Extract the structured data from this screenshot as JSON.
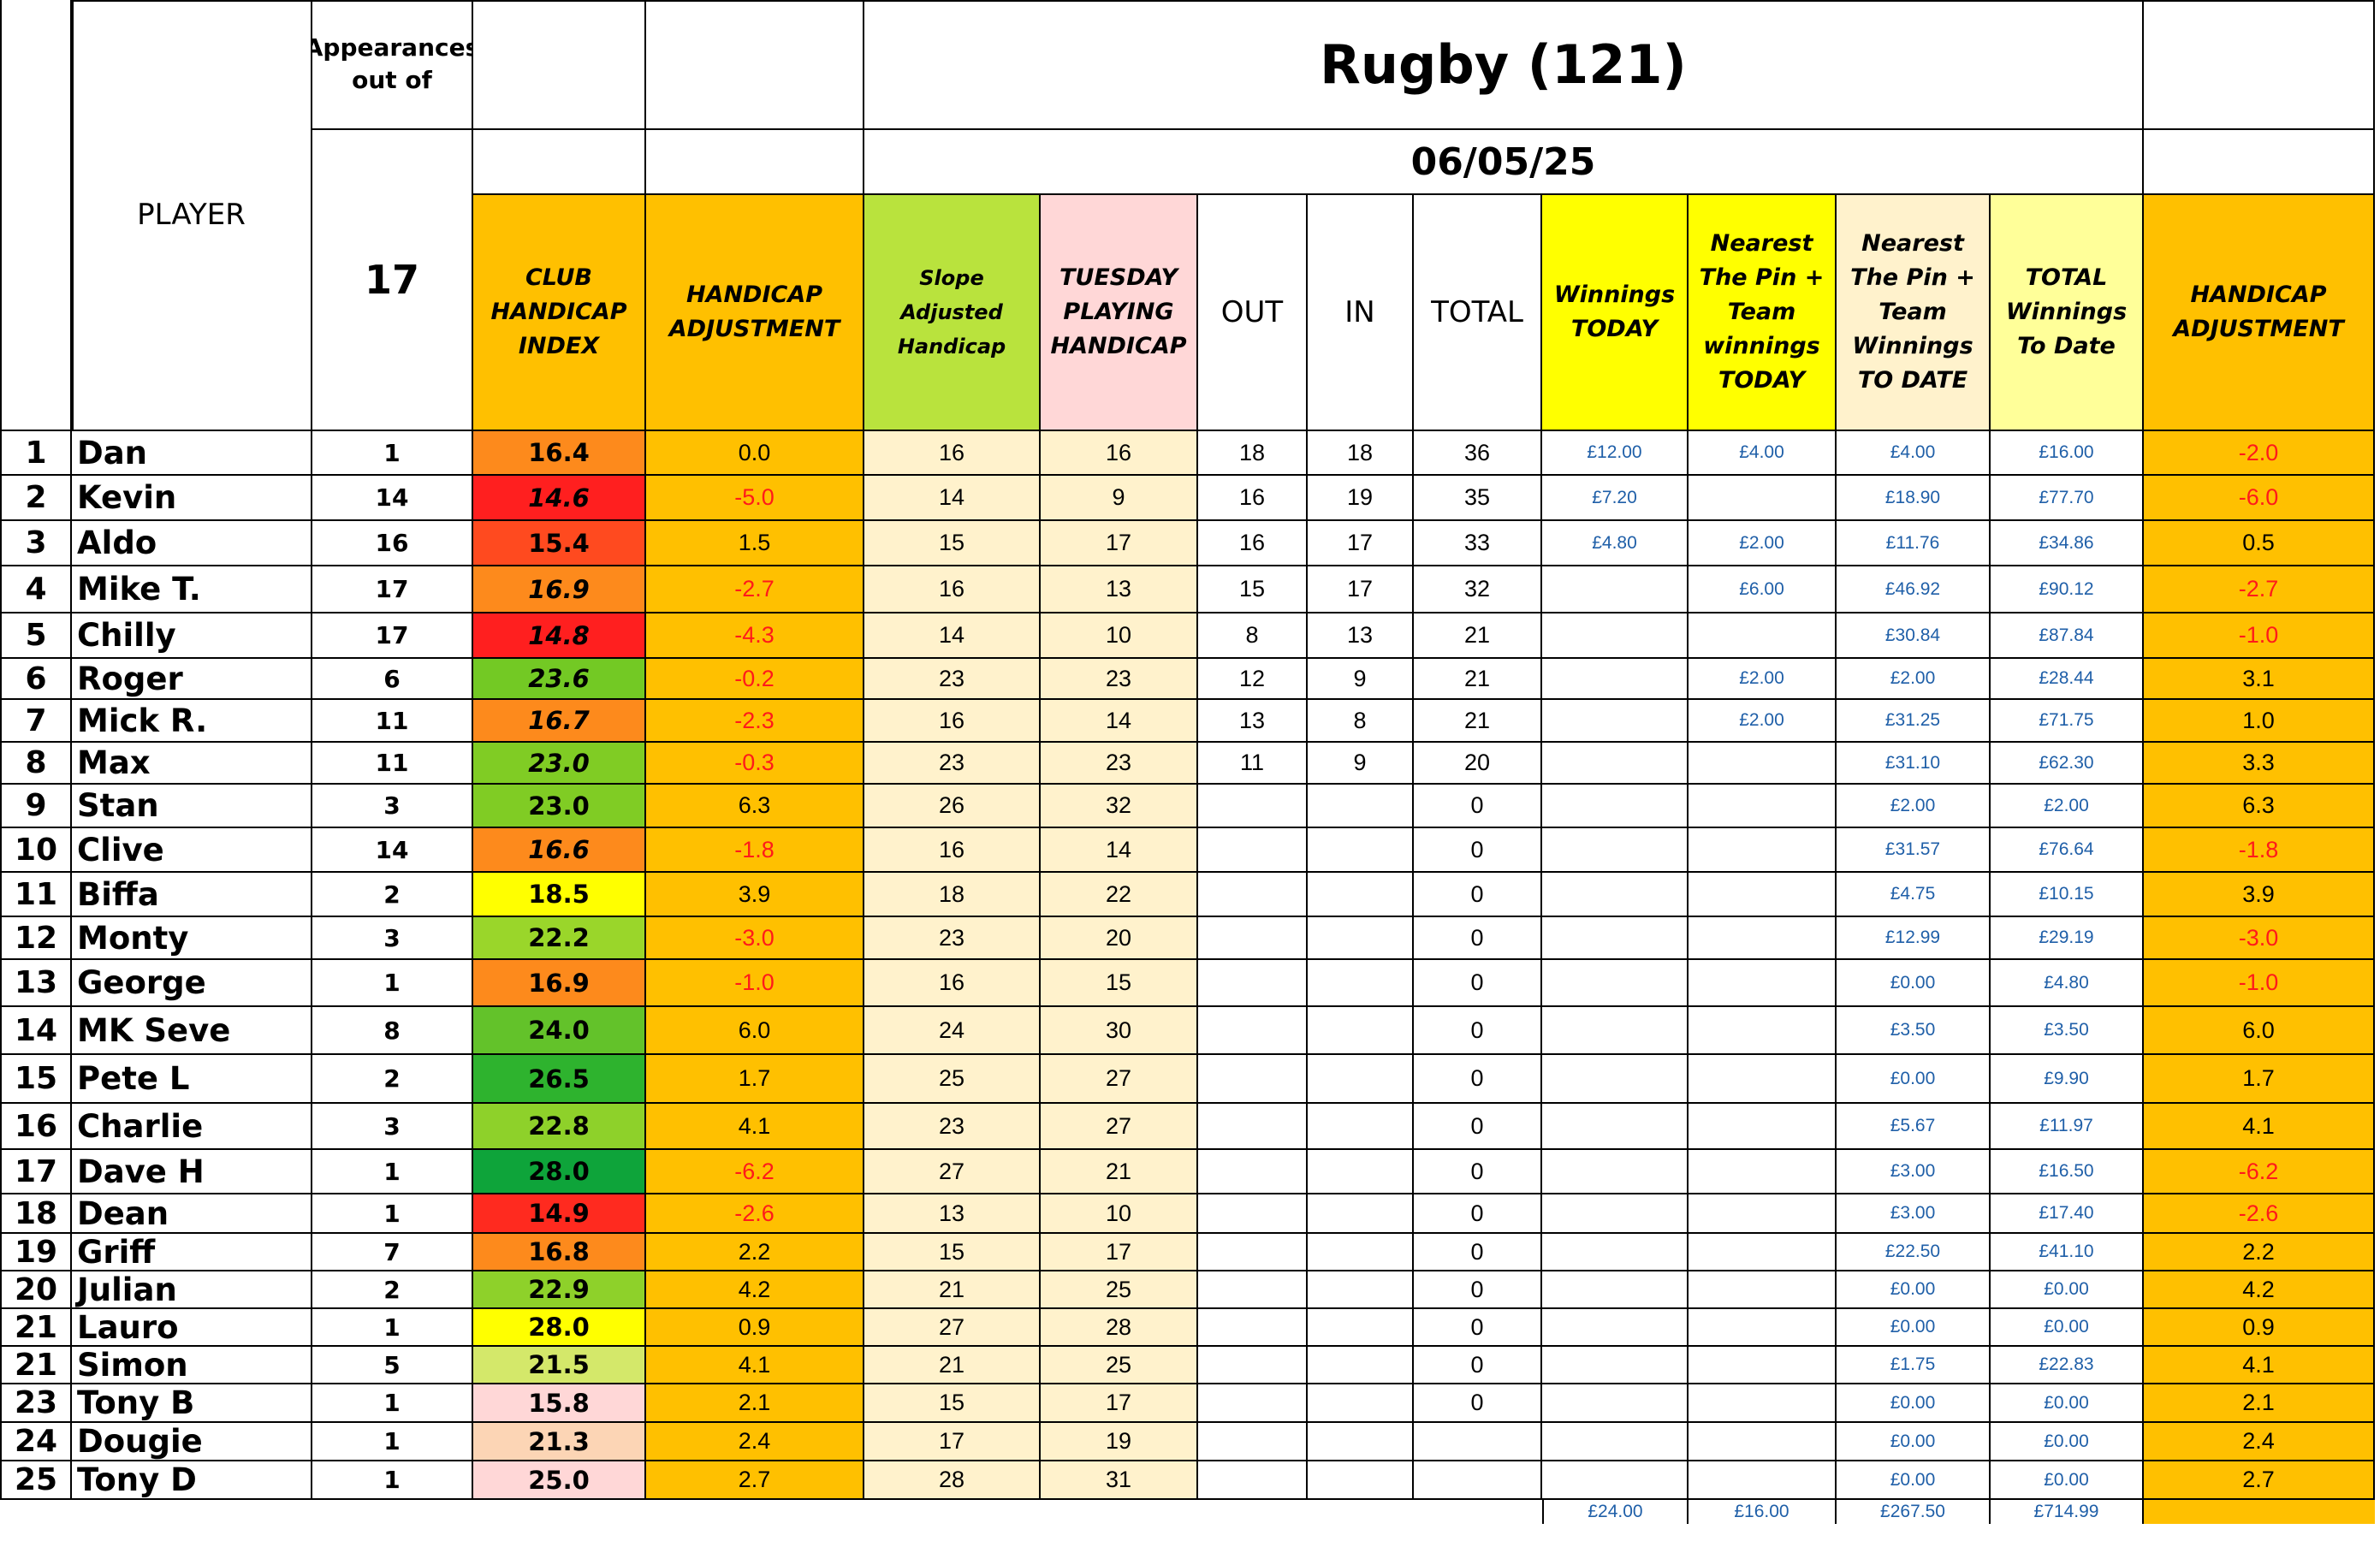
{
  "header": {
    "appearances_label": "Appearances out of",
    "appearances_total": "17",
    "title": "Rugby (121)",
    "date": "06/05/25",
    "columns": {
      "player": "PLAYER",
      "club_handicap_index": "CLUB HANDICAP INDEX",
      "handicap_adjustment": "HANDICAP ADJUSTMENT",
      "slope_adjusted": "Slope Adjusted Handicap",
      "tuesday_playing": "TUESDAY PLAYING HANDICAP",
      "out": "OUT",
      "in": "IN",
      "total": "TOTAL",
      "winnings_today": "Winnings TODAY",
      "ntp_today": "Nearest The Pin + Team winnings TODAY",
      "ntp_to_date": "Nearest The Pin + Team Winnings TO DATE",
      "total_to_date": "TOTAL Winnings To Date",
      "handicap_adjustment_2": "HANDICAP ADJUSTMENT"
    }
  },
  "colors": {
    "orange": "#ffc000",
    "lime": "#b9e33d",
    "pink": "#ffd7d7",
    "cream": "#fff2cc",
    "yellow": "#ffff00",
    "light_yellow": "#ffff99",
    "money_blue": "#1f5fa8",
    "negative_red": "#ff1a1a"
  },
  "rows": [
    {
      "no": "1",
      "name": "Dan",
      "apps": "1",
      "idx": "16.4",
      "idx_color": "#fd8a1c",
      "adj": "0.0",
      "adj_neg": false,
      "idx_italic": false,
      "slope": "16",
      "tph": "16",
      "out": "18",
      "in": "18",
      "total": "36",
      "win_today": "£12.00",
      "ntp_today": "£4.00",
      "ntp_date": "£4.00",
      "total_date": "£16.00",
      "adj2": "-2.0",
      "adj2_neg": true
    },
    {
      "no": "2",
      "name": "Kevin",
      "apps": "14",
      "idx": "14.6",
      "idx_color": "#ff1f1f",
      "adj": "-5.0",
      "adj_neg": true,
      "idx_italic": true,
      "slope": "14",
      "tph": "9",
      "out": "16",
      "in": "19",
      "total": "35",
      "win_today": "£7.20",
      "ntp_today": "",
      "ntp_date": "£18.90",
      "total_date": "£77.70",
      "adj2": "-6.0",
      "adj2_neg": true
    },
    {
      "no": "3",
      "name": "Aldo",
      "apps": "16",
      "idx": "15.4",
      "idx_color": "#ff4a1f",
      "adj": "1.5",
      "adj_neg": false,
      "idx_italic": false,
      "slope": "15",
      "tph": "17",
      "out": "16",
      "in": "17",
      "total": "33",
      "win_today": "£4.80",
      "ntp_today": "£2.00",
      "ntp_date": "£11.76",
      "total_date": "£34.86",
      "adj2": "0.5",
      "adj2_neg": false
    },
    {
      "no": "4",
      "name": "Mike T.",
      "apps": "17",
      "idx": "16.9",
      "idx_color": "#fd8a1c",
      "adj": "-2.7",
      "adj_neg": true,
      "idx_italic": true,
      "slope": "16",
      "tph": "13",
      "out": "15",
      "in": "17",
      "total": "32",
      "win_today": "",
      "ntp_today": "£6.00",
      "ntp_date": "£46.92",
      "total_date": "£90.12",
      "adj2": "-2.7",
      "adj2_neg": true
    },
    {
      "no": "5",
      "name": "Chilly",
      "apps": "17",
      "idx": "14.8",
      "idx_color": "#ff1f1f",
      "adj": "-4.3",
      "adj_neg": true,
      "idx_italic": true,
      "slope": "14",
      "tph": "10",
      "out": "8",
      "in": "13",
      "total": "21",
      "win_today": "",
      "ntp_today": "",
      "ntp_date": "£30.84",
      "total_date": "£87.84",
      "adj2": "-1.0",
      "adj2_neg": true
    },
    {
      "no": "6",
      "name": "Roger",
      "apps": "6",
      "idx": "23.6",
      "idx_color": "#73c924",
      "adj": "-0.2",
      "adj_neg": true,
      "idx_italic": true,
      "slope": "23",
      "tph": "23",
      "out": "12",
      "in": "9",
      "total": "21",
      "win_today": "",
      "ntp_today": "£2.00",
      "ntp_date": "£2.00",
      "total_date": "£28.44",
      "adj2": "3.1",
      "adj2_neg": false
    },
    {
      "no": "7",
      "name": "Mick R.",
      "apps": "11",
      "idx": "16.7",
      "idx_color": "#fd8a1c",
      "adj": "-2.3",
      "adj_neg": true,
      "idx_italic": true,
      "slope": "16",
      "tph": "14",
      "out": "13",
      "in": "8",
      "total": "21",
      "win_today": "",
      "ntp_today": "£2.00",
      "ntp_date": "£31.25",
      "total_date": "£71.75",
      "adj2": "1.0",
      "adj2_neg": false
    },
    {
      "no": "8",
      "name": "Max",
      "apps": "11",
      "idx": "23.0",
      "idx_color": "#80cc24",
      "adj": "-0.3",
      "adj_neg": true,
      "idx_italic": true,
      "slope": "23",
      "tph": "23",
      "out": "11",
      "in": "9",
      "total": "20",
      "win_today": "",
      "ntp_today": "",
      "ntp_date": "£31.10",
      "total_date": "£62.30",
      "adj2": "3.3",
      "adj2_neg": false
    },
    {
      "no": "9",
      "name": "Stan",
      "apps": "3",
      "idx": "23.0",
      "idx_color": "#80cc24",
      "adj": "6.3",
      "adj_neg": false,
      "idx_italic": false,
      "slope": "26",
      "tph": "32",
      "out": "",
      "in": "",
      "total": "0",
      "win_today": "",
      "ntp_today": "",
      "ntp_date": "£2.00",
      "total_date": "£2.00",
      "adj2": "6.3",
      "adj2_neg": false
    },
    {
      "no": "10",
      "name": "Clive",
      "apps": "14",
      "idx": "16.6",
      "idx_color": "#fd8a1c",
      "adj": "-1.8",
      "adj_neg": true,
      "idx_italic": true,
      "slope": "16",
      "tph": "14",
      "out": "",
      "in": "",
      "total": "0",
      "win_today": "",
      "ntp_today": "",
      "ntp_date": "£31.57",
      "total_date": "£76.64",
      "adj2": "-1.8",
      "adj2_neg": true
    },
    {
      "no": "11",
      "name": "Biffa",
      "apps": "2",
      "idx": "18.5",
      "idx_color": "#ffff00",
      "adj": "3.9",
      "adj_neg": false,
      "idx_italic": false,
      "slope": "18",
      "tph": "22",
      "out": "",
      "in": "",
      "total": "0",
      "win_today": "",
      "ntp_today": "",
      "ntp_date": "£4.75",
      "total_date": "£10.15",
      "adj2": "3.9",
      "adj2_neg": false
    },
    {
      "no": "12",
      "name": "Monty",
      "apps": "3",
      "idx": "22.2",
      "idx_color": "#9ad62a",
      "adj": "-3.0",
      "adj_neg": true,
      "idx_italic": false,
      "slope": "23",
      "tph": "20",
      "out": "",
      "in": "",
      "total": "0",
      "win_today": "",
      "ntp_today": "",
      "ntp_date": "£12.99",
      "total_date": "£29.19",
      "adj2": "-3.0",
      "adj2_neg": true
    },
    {
      "no": "13",
      "name": "George",
      "apps": "1",
      "idx": "16.9",
      "idx_color": "#fd8a1c",
      "adj": "-1.0",
      "adj_neg": true,
      "idx_italic": false,
      "slope": "16",
      "tph": "15",
      "out": "",
      "in": "",
      "total": "0",
      "win_today": "",
      "ntp_today": "",
      "ntp_date": "£0.00",
      "total_date": "£4.80",
      "adj2": "-1.0",
      "adj2_neg": true
    },
    {
      "no": "14",
      "name": "MK Seve",
      "apps": "8",
      "idx": "24.0",
      "idx_color": "#63c22a",
      "adj": "6.0",
      "adj_neg": false,
      "idx_italic": false,
      "slope": "24",
      "tph": "30",
      "out": "",
      "in": "",
      "total": "0",
      "win_today": "",
      "ntp_today": "",
      "ntp_date": "£3.50",
      "total_date": "£3.50",
      "adj2": "6.0",
      "adj2_neg": false
    },
    {
      "no": "15",
      "name": "Pete L",
      "apps": "2",
      "idx": "26.5",
      "idx_color": "#2eb32e",
      "adj": "1.7",
      "adj_neg": false,
      "idx_italic": false,
      "slope": "25",
      "tph": "27",
      "out": "",
      "in": "",
      "total": "0",
      "win_today": "",
      "ntp_today": "",
      "ntp_date": "£0.00",
      "total_date": "£9.90",
      "adj2": "1.7",
      "adj2_neg": false
    },
    {
      "no": "16",
      "name": "Charlie",
      "apps": "3",
      "idx": "22.8",
      "idx_color": "#8ed12a",
      "adj": "4.1",
      "adj_neg": false,
      "idx_italic": false,
      "slope": "23",
      "tph": "27",
      "out": "",
      "in": "",
      "total": "0",
      "win_today": "",
      "ntp_today": "",
      "ntp_date": "£5.67",
      "total_date": "£11.97",
      "adj2": "4.1",
      "adj2_neg": false
    },
    {
      "no": "17",
      "name": "Dave H",
      "apps": "1",
      "idx": "28.0",
      "idx_color": "#0ea43a",
      "adj": "-6.2",
      "adj_neg": true,
      "idx_italic": false,
      "slope": "27",
      "tph": "21",
      "out": "",
      "in": "",
      "total": "0",
      "win_today": "",
      "ntp_today": "",
      "ntp_date": "£3.00",
      "total_date": "£16.50",
      "adj2": "-6.2",
      "adj2_neg": true
    },
    {
      "no": "18",
      "name": "Dean",
      "apps": "1",
      "idx": "14.9",
      "idx_color": "#ff2a1f",
      "adj": "-2.6",
      "adj_neg": true,
      "idx_italic": false,
      "slope": "13",
      "tph": "10",
      "out": "",
      "in": "",
      "total": "0",
      "win_today": "",
      "ntp_today": "",
      "ntp_date": "£3.00",
      "total_date": "£17.40",
      "adj2": "-2.6",
      "adj2_neg": true
    },
    {
      "no": "19",
      "name": "Griff",
      "apps": "7",
      "idx": "16.8",
      "idx_color": "#fd8a1c",
      "adj": "2.2",
      "adj_neg": false,
      "idx_italic": false,
      "slope": "15",
      "tph": "17",
      "out": "",
      "in": "",
      "total": "0",
      "win_today": "",
      "ntp_today": "",
      "ntp_date": "£22.50",
      "total_date": "£41.10",
      "adj2": "2.2",
      "adj2_neg": false
    },
    {
      "no": "20",
      "name": "Julian",
      "apps": "2",
      "idx": "22.9",
      "idx_color": "#8ed12a",
      "adj": "4.2",
      "adj_neg": false,
      "idx_italic": false,
      "slope": "21",
      "tph": "25",
      "out": "",
      "in": "",
      "total": "0",
      "win_today": "",
      "ntp_today": "",
      "ntp_date": "£0.00",
      "total_date": "£0.00",
      "adj2": "4.2",
      "adj2_neg": false
    },
    {
      "no": "21",
      "name": "Lauro",
      "apps": "1",
      "idx": "28.0",
      "idx_color": "#ffff00",
      "adj": "0.9",
      "adj_neg": false,
      "idx_italic": false,
      "slope": "27",
      "tph": "28",
      "out": "",
      "in": "",
      "total": "0",
      "win_today": "",
      "ntp_today": "",
      "ntp_date": "£0.00",
      "total_date": "£0.00",
      "adj2": "0.9",
      "adj2_neg": false
    },
    {
      "no": "21",
      "name": "Simon",
      "apps": "5",
      "idx": "21.5",
      "idx_color": "#d4e86a",
      "adj": "4.1",
      "adj_neg": false,
      "idx_italic": false,
      "slope": "21",
      "tph": "25",
      "out": "",
      "in": "",
      "total": "0",
      "win_today": "",
      "ntp_today": "",
      "ntp_date": "£1.75",
      "total_date": "£22.83",
      "adj2": "4.1",
      "adj2_neg": false
    },
    {
      "no": "23",
      "name": "Tony B",
      "apps": "1",
      "idx": "15.8",
      "idx_color": "#ffd7d7",
      "adj": "2.1",
      "adj_neg": false,
      "idx_italic": false,
      "slope": "15",
      "tph": "17",
      "out": "",
      "in": "",
      "total": "0",
      "win_today": "",
      "ntp_today": "",
      "ntp_date": "£0.00",
      "total_date": "£0.00",
      "adj2": "2.1",
      "adj2_neg": false
    },
    {
      "no": "24",
      "name": "Dougie",
      "apps": "1",
      "idx": "21.3",
      "idx_color": "#fcd5b5",
      "adj": "2.4",
      "adj_neg": false,
      "idx_italic": false,
      "slope": "17",
      "tph": "19",
      "out": "",
      "in": "",
      "total": "",
      "win_today": "",
      "ntp_today": "",
      "ntp_date": "£0.00",
      "total_date": "£0.00",
      "adj2": "2.4",
      "adj2_neg": false
    },
    {
      "no": "25",
      "name": "Tony D",
      "apps": "1",
      "idx": "25.0",
      "idx_color": "#ffd7d7",
      "adj": "2.7",
      "adj_neg": false,
      "idx_italic": false,
      "slope": "28",
      "tph": "31",
      "out": "",
      "in": "",
      "total": "",
      "win_today": "",
      "ntp_today": "",
      "ntp_date": "£0.00",
      "total_date": "£0.00",
      "adj2": "2.7",
      "adj2_neg": false
    }
  ],
  "totals": {
    "win_today": "£24.00",
    "ntp_today": "£16.00",
    "ntp_date": "£267.50",
    "total_date": "£714.99"
  }
}
